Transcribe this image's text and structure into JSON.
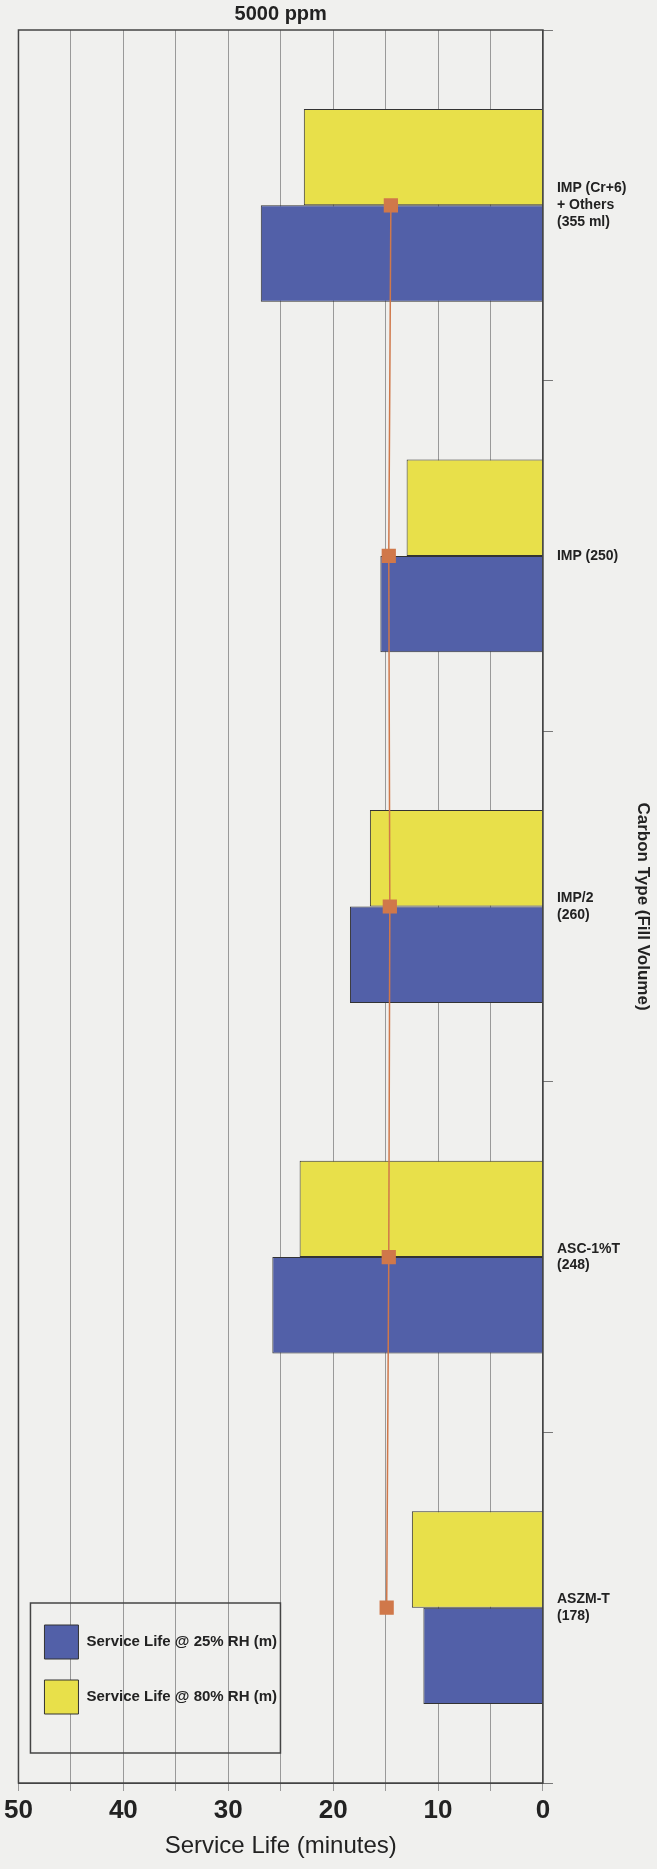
{
  "chart_data": {
    "type": "bar",
    "orientation": "horizontal",
    "title": "5000 ppm",
    "xlabel": "Service Life (minutes)",
    "ylabel": "Carbon Type (Fill Volume)",
    "categories": [
      "IMP (Cr+6) + Others (355 ml)",
      "IMP (250)",
      "IMP/2 (260)",
      "ASC-1%T (248)",
      "ASZM-T (178)"
    ],
    "series": [
      {
        "name": "Service Life @ 25% RH (m)",
        "color": "#5260a8",
        "values": [
          26.9,
          15.5,
          18.4,
          25.8,
          11.4
        ]
      },
      {
        "name": "Service Life @ 80% RH (m)",
        "color": "#e8e04a",
        "values": [
          22.8,
          13.0,
          16.5,
          23.2,
          12.5
        ]
      },
      {
        "type": "line",
        "color": "#d0784a",
        "marker": "square",
        "values": [
          14.5,
          14.7,
          14.6,
          14.7,
          14.9
        ]
      }
    ],
    "xlim": [
      50,
      0
    ],
    "xticks": [
      50,
      {
        "value": 45,
        "label": null
      },
      40,
      {
        "value": 35,
        "label": null
      },
      30,
      {
        "value": 25,
        "label": null
      },
      20,
      {
        "value": 15,
        "label": null
      },
      10,
      {
        "value": 5,
        "label": null
      },
      0
    ],
    "grid": "x",
    "legend": "bottom left"
  }
}
